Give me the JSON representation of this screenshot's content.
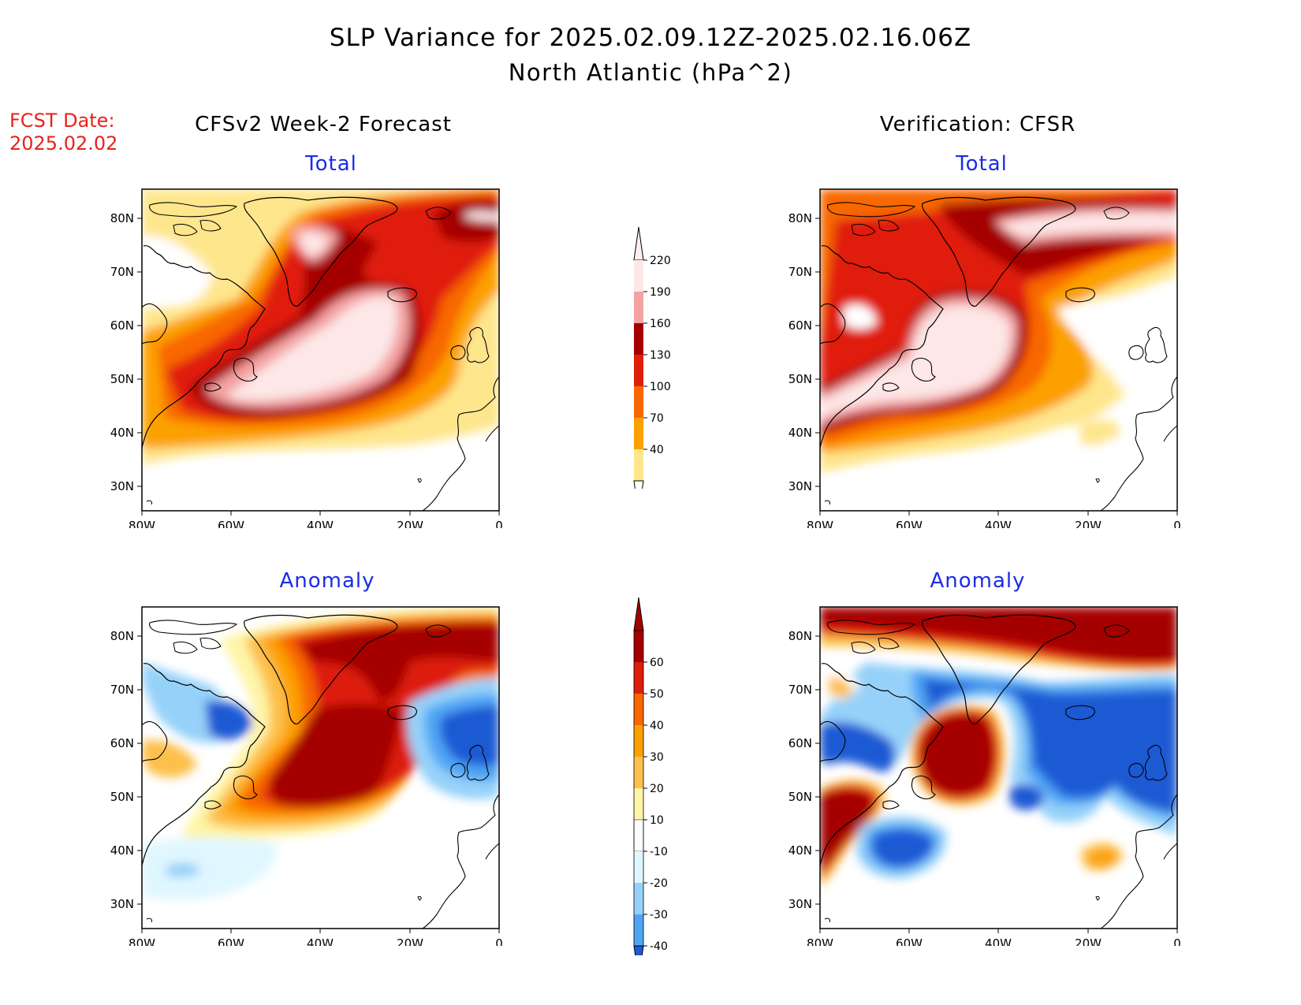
{
  "header": {
    "title": "SLP Variance for 2025.02.09.12Z-2025.02.16.06Z",
    "subtitle": "North Atlantic (hPa^2)",
    "fcst_label": "FCST Date:",
    "fcst_date": "2025.02.02"
  },
  "columns": {
    "left": "CFSv2 Week-2 Forecast",
    "right": "Verification: CFSR"
  },
  "panels": {
    "top_left": "Total",
    "top_right": "Total",
    "bottom_left": "Anomaly",
    "bottom_right": "Anomaly"
  },
  "axes": {
    "lat_ticks": [
      "80N",
      "70N",
      "60N",
      "50N",
      "40N",
      "30N"
    ],
    "lon_ticks": [
      "80W",
      "60W",
      "40W",
      "20W",
      "0"
    ],
    "lat_range": [
      25,
      85
    ],
    "lon_range": [
      -80,
      0
    ]
  },
  "colorbars": {
    "total": {
      "labels": [
        "220",
        "190",
        "160",
        "130",
        "100",
        "70",
        "40"
      ],
      "colors": [
        "#fde7e7",
        "#f4a3a3",
        "#a50000",
        "#e01f0a",
        "#f86700",
        "#fca000",
        "#fee68c"
      ]
    },
    "anomaly": {
      "labels": [
        "60",
        "50",
        "40",
        "30",
        "20",
        "10",
        "-10",
        "-20",
        "-30",
        "-40"
      ],
      "colors": [
        "#a50000",
        "#dd1f0a",
        "#f86700",
        "#fca000",
        "#fdc04c",
        "#fef5a8",
        "#ffffff",
        "#e0f7ff",
        "#96d1f9",
        "#4fa5f4",
        "#1f5ad4"
      ]
    }
  },
  "icons": {
    "land": "coastline-outline"
  }
}
